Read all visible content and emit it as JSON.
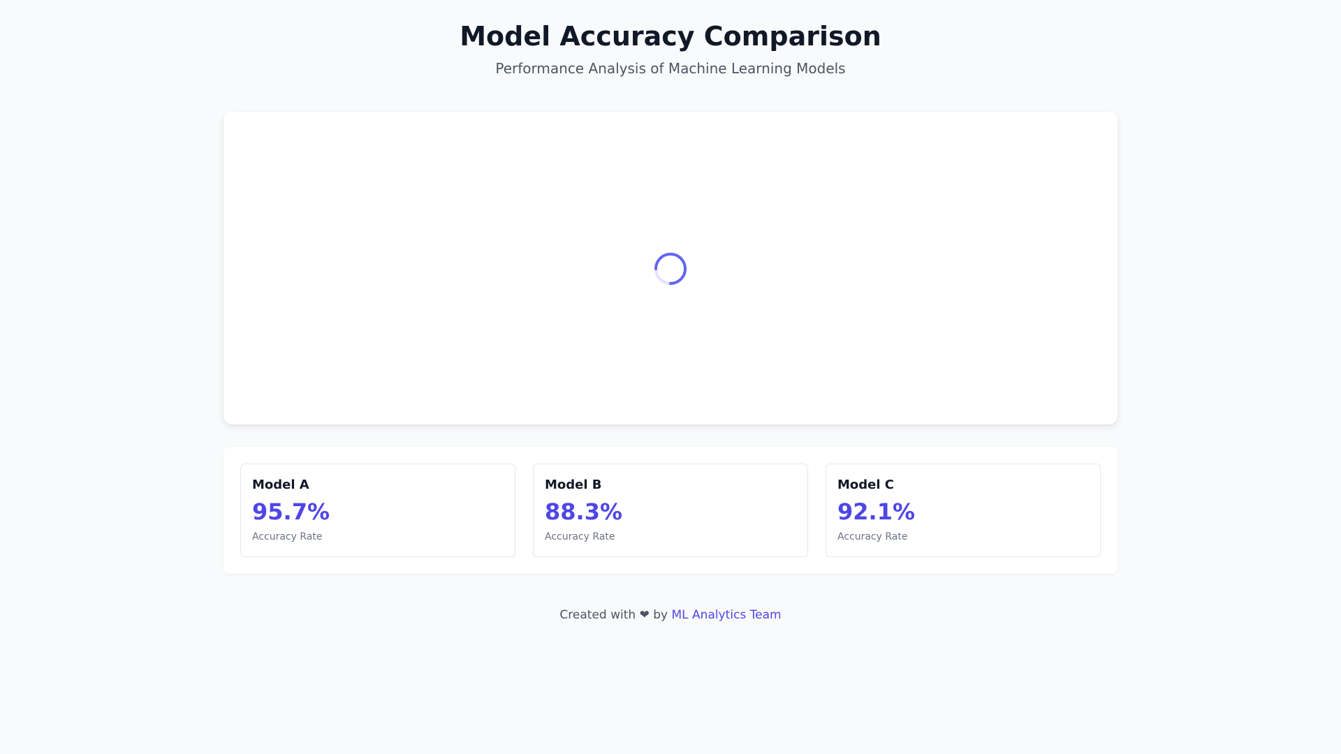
{
  "header": {
    "title": "Model Accuracy Comparison",
    "subtitle": "Performance Analysis of Machine Learning Models"
  },
  "chart": {
    "state": "loading",
    "spinner_icon": "loading-spinner-icon"
  },
  "stats": [
    {
      "name": "Model A",
      "value": "95.7%",
      "label": "Accuracy Rate"
    },
    {
      "name": "Model B",
      "value": "88.3%",
      "label": "Accuracy Rate"
    },
    {
      "name": "Model C",
      "value": "92.1%",
      "label": "Accuracy Rate"
    }
  ],
  "footer": {
    "prefix": "Created with",
    "heart": "❤",
    "by": "by",
    "link_text": "ML Analytics Team"
  },
  "colors": {
    "accent": "#4f46e5",
    "spinner": "#6366f1",
    "background": "#f9fafb",
    "card": "#ffffff",
    "border": "#e5e7eb"
  }
}
